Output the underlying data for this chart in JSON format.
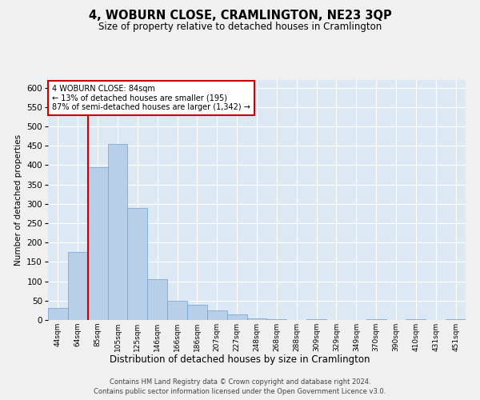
{
  "title": "4, WOBURN CLOSE, CRAMLINGTON, NE23 3QP",
  "subtitle": "Size of property relative to detached houses in Cramlington",
  "xlabel": "Distribution of detached houses by size in Cramlington",
  "ylabel": "Number of detached properties",
  "footer_line1": "Contains HM Land Registry data © Crown copyright and database right 2024.",
  "footer_line2": "Contains public sector information licensed under the Open Government Licence v3.0.",
  "property_label": "4 WOBURN CLOSE: 84sqm",
  "annotation_line1": "← 13% of detached houses are smaller (195)",
  "annotation_line2": "87% of semi-detached houses are larger (1,342) →",
  "property_line_x": 1.5,
  "bar_color": "#b8cfe8",
  "bar_edge_color": "#6a9fd8",
  "property_line_color": "#cc0000",
  "annotation_box_color": "#cc0000",
  "bg_color": "#dde8f5",
  "grid_color": "#ffffff",
  "categories": [
    "44sqm",
    "64sqm",
    "85sqm",
    "105sqm",
    "125sqm",
    "146sqm",
    "166sqm",
    "186sqm",
    "207sqm",
    "227sqm",
    "248sqm",
    "268sqm",
    "288sqm",
    "309sqm",
    "329sqm",
    "349sqm",
    "370sqm",
    "390sqm",
    "410sqm",
    "431sqm",
    "451sqm"
  ],
  "values": [
    30,
    175,
    395,
    455,
    290,
    105,
    50,
    40,
    25,
    15,
    5,
    2,
    1,
    2,
    1,
    1,
    2,
    1,
    2,
    1,
    2
  ],
  "ylim": [
    0,
    620
  ],
  "yticks": [
    0,
    50,
    100,
    150,
    200,
    250,
    300,
    350,
    400,
    450,
    500,
    550,
    600
  ]
}
